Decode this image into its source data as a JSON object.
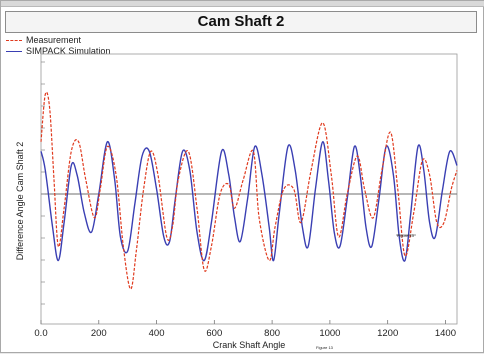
{
  "chart_data": {
    "type": "line",
    "title": "Cam Shaft 2",
    "xlabel": "Crank Shaft Angle",
    "ylabel": "Difference Angle Cam Shaft 2",
    "xlim": [
      0,
      1440
    ],
    "x_ticks": [
      0,
      200,
      400,
      600,
      800,
      1000,
      1200,
      1400
    ],
    "x_tick_labels": [
      "0.0",
      "200",
      "400",
      "600",
      "800",
      "1000",
      "1200",
      "1400"
    ],
    "y_tick_labels": [],
    "grid": false,
    "legend_position": "top-left",
    "annotations": [
      "Figure 13"
    ],
    "footer_label": "Figure 13",
    "series": [
      {
        "name": "Measurement",
        "color": "#e03a1e",
        "style": "dashed",
        "points": [
          [
            0,
            0.55
          ],
          [
            15,
            1.05
          ],
          [
            30,
            0.9
          ],
          [
            45,
            0.15
          ],
          [
            60,
            -0.55
          ],
          [
            80,
            -0.15
          ],
          [
            105,
            0.45
          ],
          [
            130,
            0.55
          ],
          [
            155,
            0.15
          ],
          [
            185,
            -0.25
          ],
          [
            205,
            0.05
          ],
          [
            230,
            0.5
          ],
          [
            260,
            0.2
          ],
          [
            285,
            -0.55
          ],
          [
            310,
            -1.0
          ],
          [
            330,
            -0.6
          ],
          [
            355,
            0.05
          ],
          [
            380,
            0.45
          ],
          [
            405,
            0.2
          ],
          [
            435,
            -0.45
          ],
          [
            455,
            -0.35
          ],
          [
            475,
            0.15
          ],
          [
            510,
            0.45
          ],
          [
            540,
            -0.15
          ],
          [
            565,
            -0.8
          ],
          [
            590,
            -0.55
          ],
          [
            620,
            0.0
          ],
          [
            650,
            0.1
          ],
          [
            670,
            -0.15
          ],
          [
            700,
            0.15
          ],
          [
            735,
            0.45
          ],
          [
            755,
            -0.25
          ],
          [
            790,
            -0.7
          ],
          [
            810,
            -0.35
          ],
          [
            840,
            0.05
          ],
          [
            875,
            0.05
          ],
          [
            900,
            -0.3
          ],
          [
            935,
            0.25
          ],
          [
            975,
            0.75
          ],
          [
            1005,
            0.2
          ],
          [
            1030,
            -0.45
          ],
          [
            1060,
            0.0
          ],
          [
            1095,
            0.4
          ],
          [
            1120,
            0.05
          ],
          [
            1150,
            -0.25
          ],
          [
            1180,
            0.25
          ],
          [
            1210,
            0.65
          ],
          [
            1235,
            0.05
          ],
          [
            1260,
            -0.65
          ],
          [
            1290,
            -0.2
          ],
          [
            1320,
            0.35
          ],
          [
            1345,
            0.2
          ],
          [
            1370,
            -0.3
          ],
          [
            1395,
            -0.3
          ],
          [
            1420,
            0.05
          ],
          [
            1440,
            0.25
          ]
        ]
      },
      {
        "name": "SIMPACK Simulation",
        "color": "#3a3fb3",
        "style": "solid",
        "points": [
          [
            0,
            0.45
          ],
          [
            15,
            0.25
          ],
          [
            40,
            -0.35
          ],
          [
            60,
            -0.7
          ],
          [
            80,
            -0.3
          ],
          [
            105,
            0.3
          ],
          [
            125,
            0.2
          ],
          [
            150,
            -0.2
          ],
          [
            175,
            -0.4
          ],
          [
            200,
            0.0
          ],
          [
            230,
            0.55
          ],
          [
            255,
            0.15
          ],
          [
            275,
            -0.45
          ],
          [
            300,
            -0.6
          ],
          [
            325,
            -0.1
          ],
          [
            350,
            0.4
          ],
          [
            375,
            0.45
          ],
          [
            400,
            0.05
          ],
          [
            425,
            -0.45
          ],
          [
            445,
            -0.5
          ],
          [
            465,
            -0.05
          ],
          [
            490,
            0.45
          ],
          [
            515,
            0.25
          ],
          [
            540,
            -0.4
          ],
          [
            565,
            -0.7
          ],
          [
            590,
            -0.3
          ],
          [
            625,
            0.45
          ],
          [
            650,
            0.2
          ],
          [
            670,
            -0.25
          ],
          [
            690,
            -0.5
          ],
          [
            715,
            -0.05
          ],
          [
            740,
            0.5
          ],
          [
            765,
            0.2
          ],
          [
            790,
            -0.35
          ],
          [
            805,
            -0.7
          ],
          [
            825,
            -0.2
          ],
          [
            855,
            0.5
          ],
          [
            880,
            0.25
          ],
          [
            905,
            -0.35
          ],
          [
            925,
            -0.55
          ],
          [
            950,
            0.05
          ],
          [
            975,
            0.55
          ],
          [
            995,
            0.15
          ],
          [
            1015,
            -0.4
          ],
          [
            1035,
            -0.55
          ],
          [
            1060,
            -0.05
          ],
          [
            1085,
            0.5
          ],
          [
            1105,
            0.2
          ],
          [
            1125,
            -0.35
          ],
          [
            1145,
            -0.55
          ],
          [
            1170,
            -0.05
          ],
          [
            1195,
            0.5
          ],
          [
            1220,
            0.2
          ],
          [
            1240,
            -0.45
          ],
          [
            1260,
            -0.7
          ],
          [
            1280,
            -0.2
          ],
          [
            1305,
            0.5
          ],
          [
            1325,
            0.25
          ],
          [
            1345,
            -0.3
          ],
          [
            1365,
            -0.45
          ],
          [
            1390,
            0.05
          ],
          [
            1415,
            0.45
          ],
          [
            1440,
            0.3
          ]
        ]
      }
    ]
  }
}
